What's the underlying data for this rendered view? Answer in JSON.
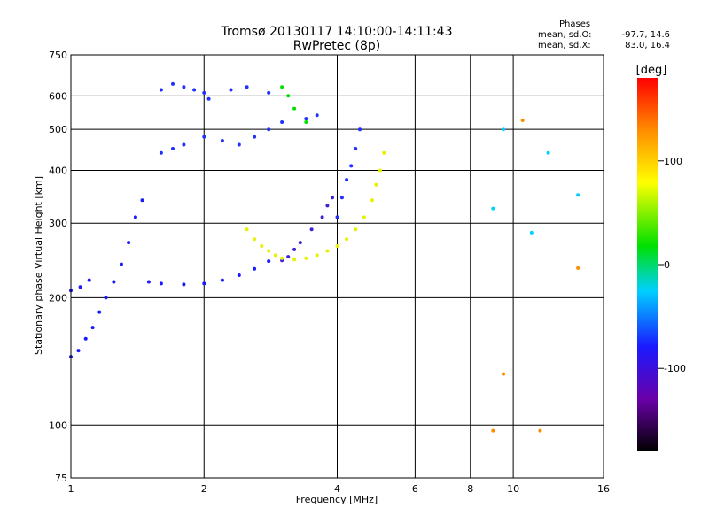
{
  "chart_data": {
    "type": "scatter",
    "title": "Tromsø 20130117 14:10:00-14:11:43",
    "subtitle": "RwPretec (8p)",
    "xlabel": "Frequency [MHz]",
    "ylabel": "Stationary phase Virtual Height [km]",
    "x_scale": "log",
    "y_scale": "log",
    "xlim": [
      1,
      16
    ],
    "ylim": [
      75,
      750
    ],
    "x_ticks": [
      1,
      2,
      4,
      6,
      8,
      10,
      16
    ],
    "x_tick_labels": [
      "1",
      "2",
      "4",
      "6",
      "8",
      "10",
      "16"
    ],
    "y_ticks": [
      75,
      100,
      200,
      300,
      400,
      500,
      600,
      750
    ],
    "y_tick_labels": [
      "75",
      "100",
      "200",
      "300",
      "400",
      "500",
      "600",
      "750"
    ],
    "grid": true,
    "colorbar": {
      "label": "[deg]",
      "range": [
        -180,
        180
      ],
      "ticks": [
        100,
        0,
        -100
      ],
      "tick_labels": [
        "100",
        "0",
        "-100"
      ],
      "colors": [
        "#000000",
        "#6a00a8",
        "#1a1aff",
        "#00d0ff",
        "#00e000",
        "#ffff00",
        "#ff8c00",
        "#ff0000"
      ]
    },
    "stats": {
      "heading": "Phases",
      "o_label": "mean, sd,O:",
      "o_values": "-97.7, 14.6",
      "x_label": "mean, sd,X:",
      "x_values": "83.0, 16.4"
    },
    "series": [
      {
        "color": "#1a1aff",
        "points": [
          [
            1.0,
            145
          ],
          [
            1.04,
            150
          ],
          [
            1.08,
            160
          ],
          [
            1.12,
            170
          ],
          [
            1.16,
            185
          ],
          [
            1.2,
            200
          ],
          [
            1.25,
            218
          ],
          [
            1.3,
            240
          ],
          [
            1.35,
            270
          ],
          [
            1.4,
            310
          ],
          [
            1.45,
            340
          ]
        ]
      },
      {
        "color": "#1a1aff",
        "points": [
          [
            1.0,
            208
          ],
          [
            1.05,
            212
          ],
          [
            1.1,
            220
          ]
        ]
      },
      {
        "color": "#1a1aff",
        "points": [
          [
            1.5,
            218
          ],
          [
            1.6,
            216
          ],
          [
            1.8,
            215
          ],
          [
            2.0,
            216
          ],
          [
            2.2,
            220
          ],
          [
            2.4,
            226
          ],
          [
            2.6,
            234
          ],
          [
            2.8,
            244
          ]
        ]
      },
      {
        "color": "#2030ff",
        "points": [
          [
            1.6,
            440
          ],
          [
            1.7,
            450
          ],
          [
            1.8,
            460
          ],
          [
            2.0,
            480
          ],
          [
            2.2,
            470
          ],
          [
            2.4,
            460
          ],
          [
            2.6,
            480
          ],
          [
            2.8,
            500
          ],
          [
            3.0,
            520
          ],
          [
            3.4,
            530
          ],
          [
            3.6,
            540
          ]
        ]
      },
      {
        "color": "#2030ff",
        "points": [
          [
            1.6,
            620
          ],
          [
            1.7,
            640
          ],
          [
            1.8,
            630
          ],
          [
            1.9,
            620
          ],
          [
            2.0,
            610
          ],
          [
            2.05,
            590
          ],
          [
            2.3,
            620
          ],
          [
            2.5,
            630
          ],
          [
            2.8,
            610
          ]
        ]
      },
      {
        "color": "#4020d0",
        "points": [
          [
            3.0,
            245
          ],
          [
            3.1,
            250
          ],
          [
            3.2,
            260
          ],
          [
            3.3,
            270
          ],
          [
            3.5,
            290
          ],
          [
            3.7,
            310
          ],
          [
            3.8,
            330
          ],
          [
            3.9,
            345
          ]
        ]
      },
      {
        "color": "#2030ff",
        "points": [
          [
            4.0,
            310
          ],
          [
            4.1,
            345
          ],
          [
            4.2,
            380
          ],
          [
            4.3,
            410
          ],
          [
            4.4,
            450
          ],
          [
            4.5,
            500
          ]
        ]
      },
      {
        "color": "#e8f000",
        "points": [
          [
            2.5,
            290
          ],
          [
            2.6,
            275
          ],
          [
            2.7,
            265
          ],
          [
            2.8,
            258
          ],
          [
            2.9,
            252
          ],
          [
            3.0,
            248
          ],
          [
            3.2,
            246
          ],
          [
            3.4,
            248
          ],
          [
            3.6,
            252
          ],
          [
            3.8,
            258
          ],
          [
            4.0,
            265
          ],
          [
            4.2,
            275
          ],
          [
            4.4,
            290
          ],
          [
            4.6,
            310
          ],
          [
            4.8,
            340
          ],
          [
            4.9,
            370
          ],
          [
            5.0,
            400
          ],
          [
            5.1,
            440
          ]
        ]
      },
      {
        "color": "#00e000",
        "points": [
          [
            3.0,
            630
          ],
          [
            3.1,
            600
          ],
          [
            3.2,
            560
          ],
          [
            3.4,
            520
          ]
        ]
      },
      {
        "color": "#ff8c00",
        "points": [
          [
            9.0,
            97
          ],
          [
            9.5,
            132
          ],
          [
            10.5,
            525
          ],
          [
            11.5,
            97
          ],
          [
            14.0,
            235
          ]
        ]
      },
      {
        "color": "#00d0ff",
        "points": [
          [
            9.0,
            325
          ],
          [
            9.5,
            500
          ],
          [
            11.0,
            285
          ],
          [
            12.0,
            440
          ],
          [
            14.0,
            350
          ]
        ]
      }
    ]
  }
}
